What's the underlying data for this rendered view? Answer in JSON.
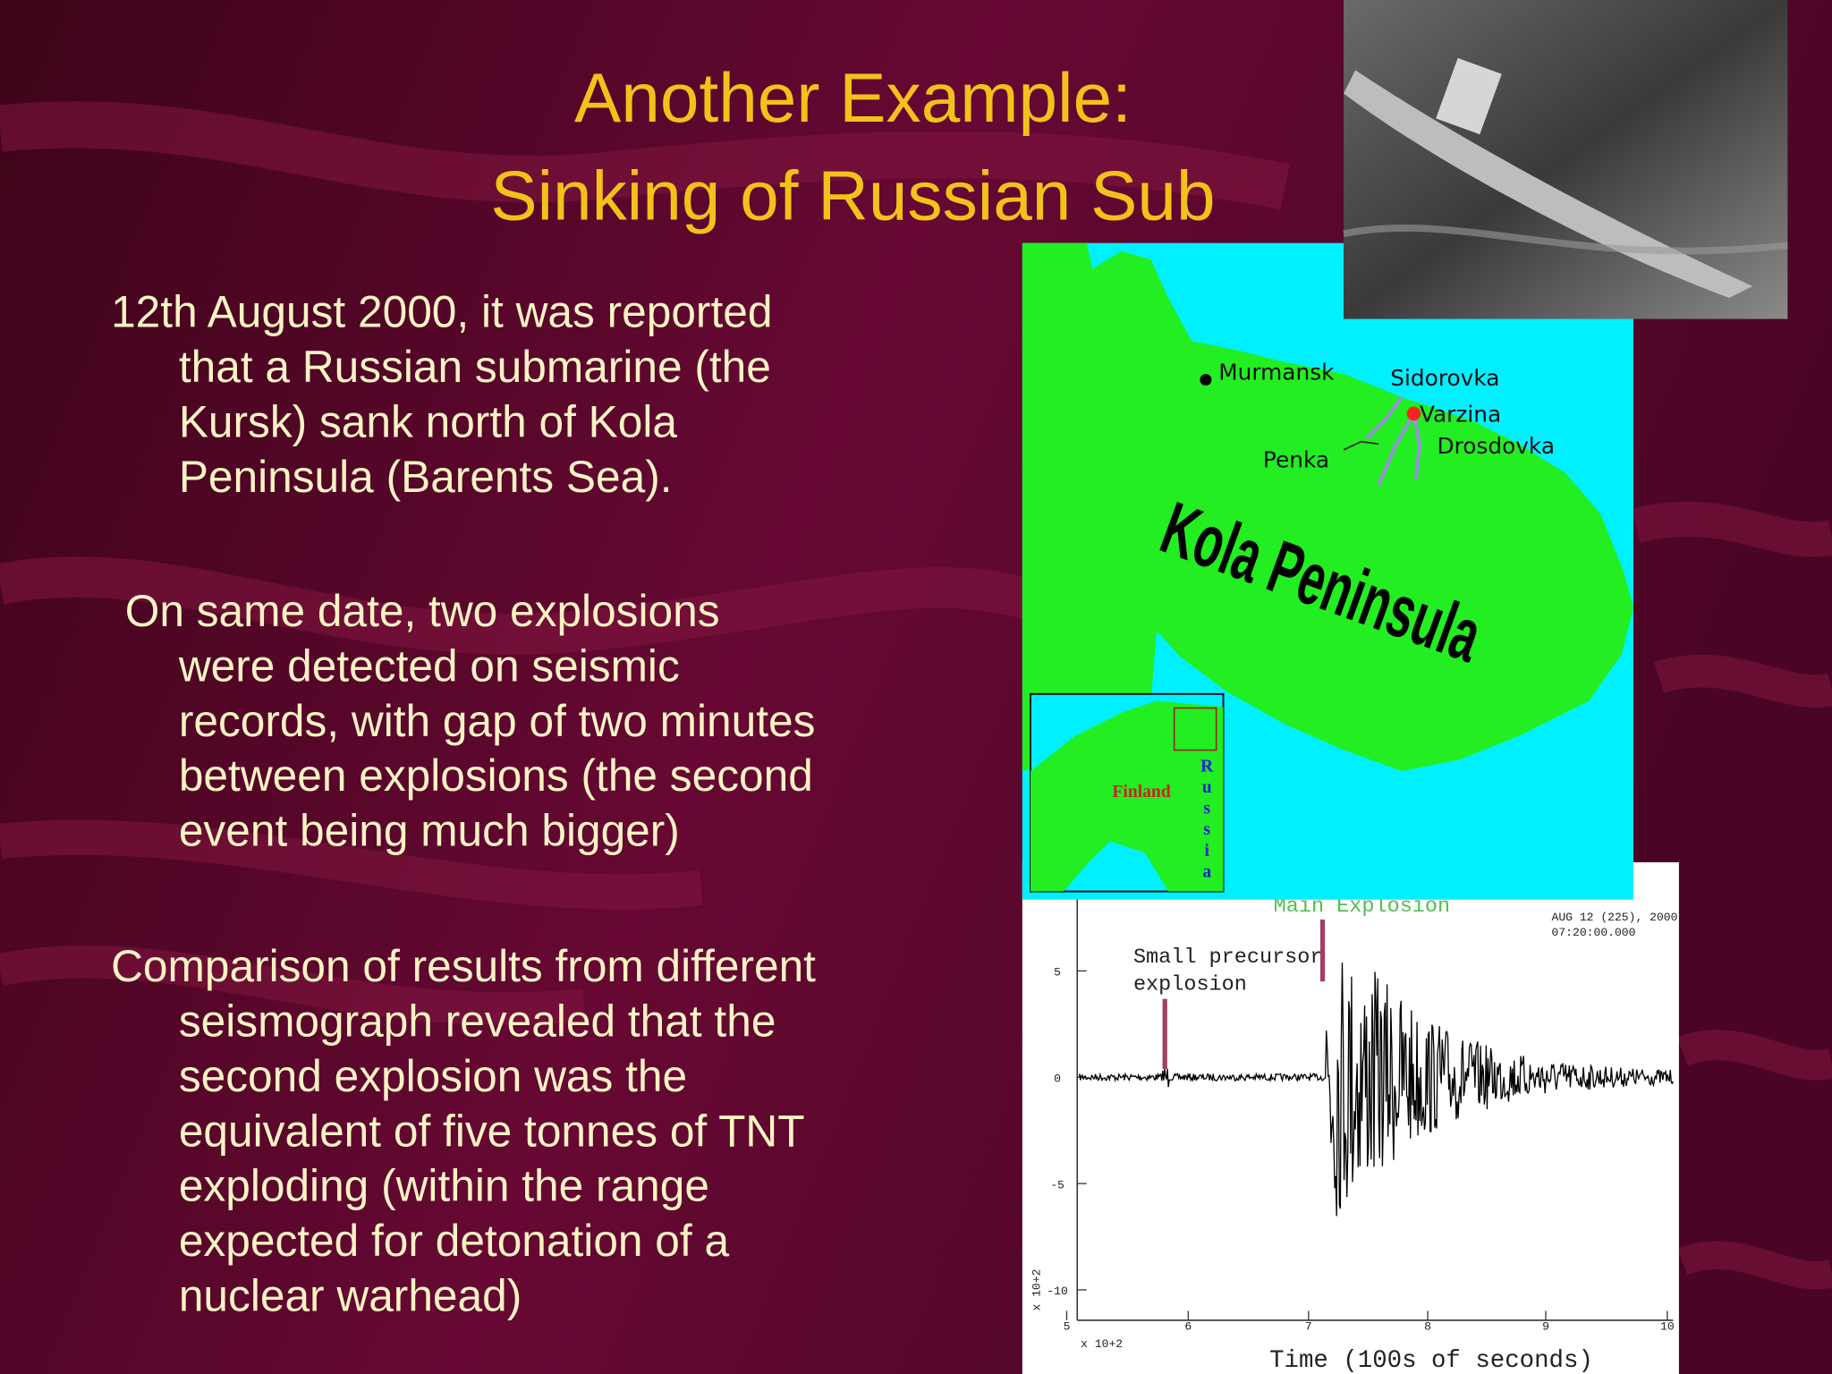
{
  "title": {
    "line1": "Another Example:",
    "line2": "Sinking of Russian Sub"
  },
  "paragraphs": [
    {
      "lines": [
        "12th August 2000, it was reported",
        "that a Russian submarine (the",
        "Kursk) sank north of Kola",
        "Peninsula (Barents Sea)."
      ]
    },
    {
      "lines": [
        "On same date, two explosions",
        "were detected on seismic",
        "records, with gap of two minutes",
        "between explosions (the second",
        "event being much bigger)"
      ]
    },
    {
      "lines": [
        "Comparison of results from different",
        "seismograph revealed that the",
        "second explosion was the",
        "equivalent of five tonnes of TNT",
        "exploding (within the range",
        "expected for detonation of a",
        "nuclear warhead)"
      ]
    }
  ],
  "map": {
    "murmansk": "Murmansk",
    "sidorovka": "Sidorovka",
    "varzina": "Varzina",
    "drosdovka": "Drosdovka",
    "penka": "Penka",
    "peninsula": "Kola Peninsula",
    "finland": "Finland",
    "russia": "Russia"
  },
  "seismogram": {
    "main": "Main Explosion",
    "date": "AUG 12 (225), 2000",
    "time": "07:20:00.000",
    "precursor": [
      "Small precursor",
      "explosion"
    ],
    "yticks": [
      "5",
      "0",
      "-5",
      "-10"
    ],
    "xticks": [
      "5",
      "6",
      "7",
      "8",
      "9",
      "10"
    ],
    "xscale": "x 10+2",
    "yscale": "x 10+2",
    "xlabel": "Time (100s of seconds)"
  }
}
